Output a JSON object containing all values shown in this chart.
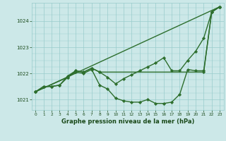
{
  "title": "Graphe pression niveau de la mer (hPa)",
  "bg_color": "#cce8e8",
  "grid_color": "#99cccc",
  "line_color": "#2d6e2d",
  "marker_color": "#2d6e2d",
  "label_color": "#1a4a1a",
  "ylim": [
    1020.6,
    1024.7
  ],
  "xlim": [
    -0.5,
    23.5
  ],
  "yticks": [
    1021,
    1022,
    1023,
    1024
  ],
  "xticks": [
    0,
    1,
    2,
    3,
    4,
    5,
    6,
    7,
    8,
    9,
    10,
    11,
    12,
    13,
    14,
    15,
    16,
    17,
    18,
    19,
    20,
    21,
    22,
    23
  ],
  "series": [
    {
      "x": [
        0,
        23
      ],
      "y": [
        1021.3,
        1024.55
      ],
      "marker": "D",
      "lw": 1.0
    },
    {
      "x": [
        0,
        4,
        5,
        6,
        7,
        8,
        21,
        22,
        23
      ],
      "y": [
        1021.3,
        1021.85,
        1022.1,
        1022.05,
        1022.2,
        1022.05,
        1022.05,
        1024.35,
        1024.55
      ],
      "marker": "D",
      "lw": 1.0
    },
    {
      "x": [
        0,
        1,
        2,
        3,
        4,
        5,
        6,
        7,
        8,
        9,
        10,
        11,
        12,
        13,
        14,
        15,
        16,
        17,
        18,
        19,
        20,
        21,
        22,
        23
      ],
      "y": [
        1021.3,
        1021.5,
        1021.5,
        1021.55,
        1021.85,
        1022.05,
        1022.0,
        1022.15,
        1021.55,
        1021.4,
        1021.05,
        1020.95,
        1020.9,
        1020.9,
        1021.0,
        1020.85,
        1020.85,
        1020.9,
        1021.2,
        1022.15,
        1022.1,
        1022.1,
        1024.35,
        1024.55
      ],
      "marker": "D",
      "lw": 1.0
    },
    {
      "x": [
        0,
        1,
        2,
        3,
        4,
        5,
        6,
        7,
        8,
        9,
        10,
        11,
        12,
        13,
        14,
        15,
        16,
        17,
        18,
        19,
        20,
        21,
        22,
        23
      ],
      "y": [
        1021.3,
        1021.5,
        1021.5,
        1021.55,
        1021.9,
        1022.1,
        1022.05,
        1022.2,
        1022.05,
        1021.85,
        1021.6,
        1021.8,
        1021.95,
        1022.1,
        1022.25,
        1022.4,
        1022.6,
        1022.1,
        1022.1,
        1022.5,
        1022.85,
        1023.35,
        1024.35,
        1024.55
      ],
      "marker": "D",
      "lw": 1.0
    }
  ]
}
